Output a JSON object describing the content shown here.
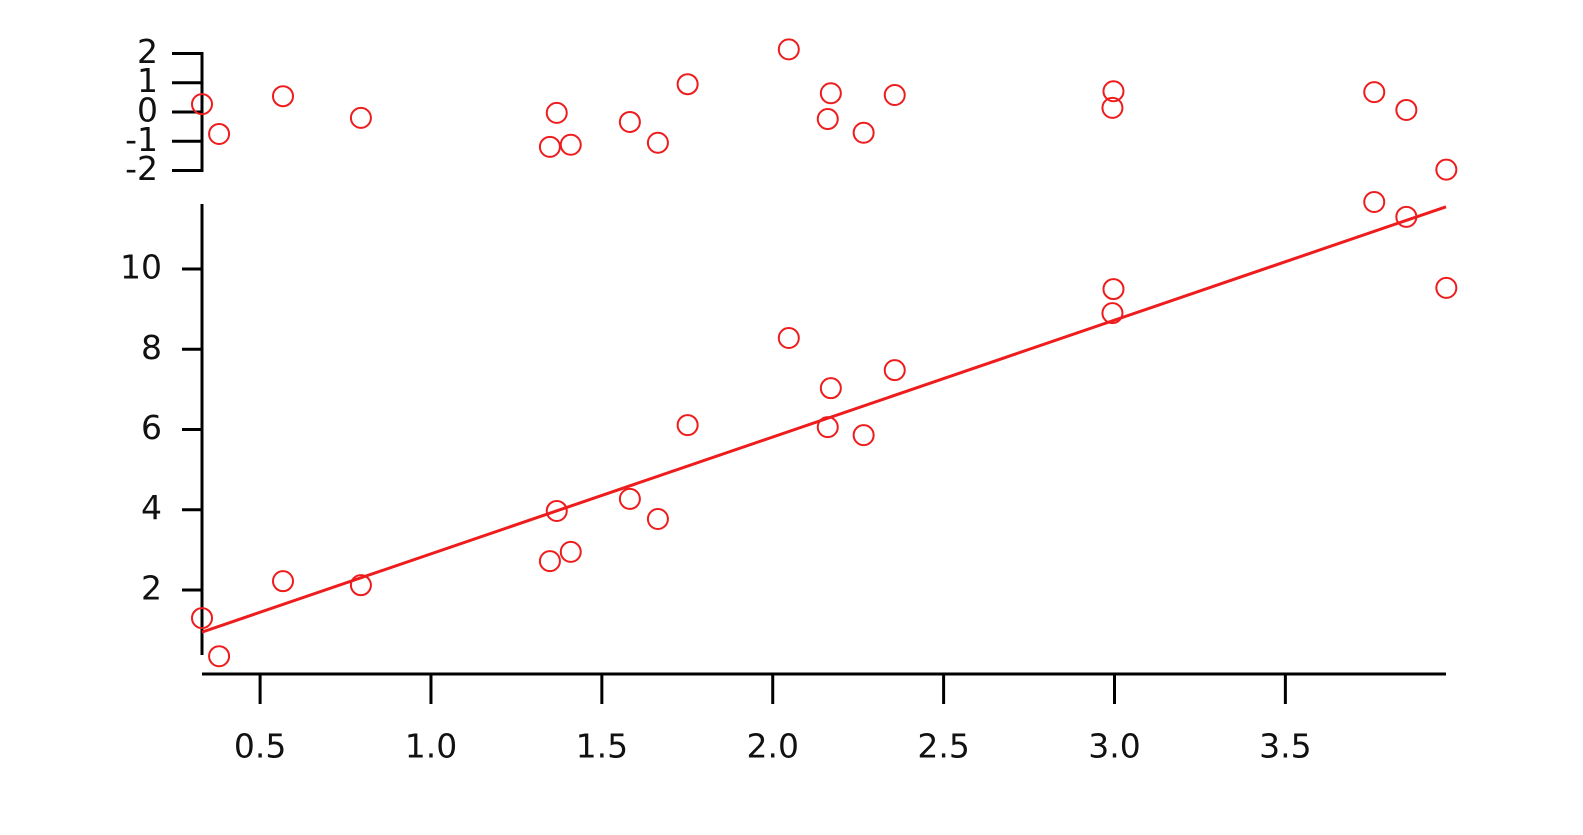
{
  "chart_data": [
    {
      "type": "scatter",
      "color": "#ee1c1c",
      "show_xaxis": false,
      "x": [
        0.33,
        0.38,
        0.567,
        0.795,
        1.348,
        1.368,
        1.409,
        1.582,
        1.664,
        1.751,
        2.047,
        2.161,
        2.17,
        2.266,
        2.357,
        2.994,
        2.997,
        3.76,
        3.854,
        3.971
      ],
      "values": [
        0.27,
        -0.75,
        0.54,
        -0.2,
        -1.19,
        -0.03,
        -1.12,
        -0.34,
        -1.05,
        0.95,
        2.14,
        -0.24,
        0.64,
        -0.71,
        0.58,
        0.14,
        0.71,
        0.68,
        0.07,
        -1.97
      ],
      "xlim": [
        0.33,
        3.97
      ],
      "ylim": [
        -2.05,
        2.05
      ],
      "yticks": [
        -2,
        -1,
        0,
        1,
        2
      ]
    },
    {
      "type": "scatter",
      "color": "#ee1c1c",
      "show_xaxis": true,
      "x": [
        0.33,
        0.38,
        0.567,
        0.795,
        1.348,
        1.368,
        1.409,
        1.582,
        1.664,
        1.751,
        2.047,
        2.161,
        2.17,
        2.266,
        2.357,
        2.994,
        2.997,
        3.76,
        3.854,
        3.971
      ],
      "values": [
        1.3,
        0.35,
        2.22,
        2.12,
        2.72,
        3.97,
        2.95,
        4.27,
        3.77,
        6.11,
        8.28,
        6.06,
        7.03,
        5.86,
        7.48,
        8.9,
        9.5,
        11.67,
        11.3,
        9.53
      ],
      "fit": {
        "x": [
          0.33,
          3.97
        ],
        "values": [
          0.95,
          11.55
        ]
      },
      "xlim": [
        0.33,
        3.97
      ],
      "ylim": [
        0.38,
        11.62
      ],
      "xticks": [
        0.5,
        {
          "value": 1,
          "label": "1.0"
        },
        1.5,
        {
          "value": 2,
          "label": "2.0"
        },
        2.5,
        {
          "value": 3,
          "label": "3.0"
        },
        3.5
      ],
      "yticks": [
        2,
        4,
        6,
        8,
        10
      ]
    }
  ]
}
